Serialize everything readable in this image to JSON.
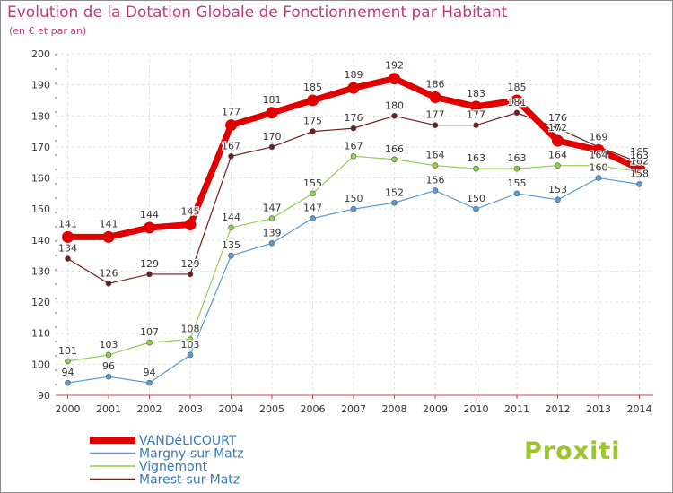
{
  "header": {
    "title": "Evolution de la Dotation Globale de Fonctionnement par Habitant",
    "subtitle": "(en € et par an)"
  },
  "logo": {
    "text": "Proxiti"
  },
  "chart_data": {
    "type": "line",
    "title": "Evolution de la Dotation Globale de Fonctionnement par Habitant",
    "subtitle": "(en € et par an)",
    "xlabel": "",
    "ylabel": "",
    "ylim": [
      90,
      200
    ],
    "yticks": [
      90,
      100,
      110,
      120,
      130,
      140,
      150,
      160,
      170,
      180,
      190,
      200
    ],
    "grid": true,
    "legend_position": "bottom-left",
    "categories": [
      "2000",
      "2001",
      "2002",
      "2003",
      "2004",
      "2005",
      "2006",
      "2007",
      "2008",
      "2009",
      "2010",
      "2011",
      "2012",
      "2013",
      "2014"
    ],
    "series": [
      {
        "name": "VANDéLICOURT",
        "color": "#e00000",
        "emphasis": true,
        "values": [
          141,
          141,
          144,
          145,
          177,
          181,
          185,
          189,
          192,
          186,
          183,
          185,
          172,
          169,
          163
        ],
        "labels": [
          "141",
          "141",
          "144",
          "145",
          "177",
          "181",
          "185",
          "189",
          "192",
          "186",
          "183",
          "185",
          "172",
          "169",
          "163"
        ]
      },
      {
        "name": "Margny-sur-Matz",
        "color": "#5b9bd5",
        "emphasis": false,
        "values": [
          94,
          96,
          94,
          103,
          135,
          139,
          147,
          150,
          152,
          156,
          150,
          155,
          153,
          160,
          158
        ],
        "labels": [
          "94",
          "96",
          "94",
          "103",
          "135",
          "139",
          "147",
          "150",
          "152",
          "156",
          "150",
          "155",
          "153",
          "160",
          "158"
        ]
      },
      {
        "name": "Vignemont",
        "color": "#92d050",
        "emphasis": false,
        "values": [
          101,
          103,
          107,
          108,
          144,
          147,
          155,
          167,
          166,
          164,
          163,
          163,
          164,
          164,
          162
        ],
        "labels": [
          "101",
          "103",
          "107",
          "108",
          "144",
          "147",
          "155",
          "167",
          "166",
          "164",
          "163",
          "163",
          "164",
          "164",
          "162"
        ]
      },
      {
        "name": "Marest-sur-Matz",
        "color": "#6e1e1e",
        "emphasis": false,
        "values": [
          134,
          126,
          129,
          129,
          167,
          170,
          175,
          176,
          180,
          177,
          177,
          181,
          176,
          170,
          165
        ],
        "labels": [
          "134",
          "126",
          "129",
          "129",
          "167",
          "170",
          "175",
          "176",
          "180",
          "177",
          "177",
          "181",
          "176",
          "170",
          "165"
        ]
      }
    ]
  }
}
